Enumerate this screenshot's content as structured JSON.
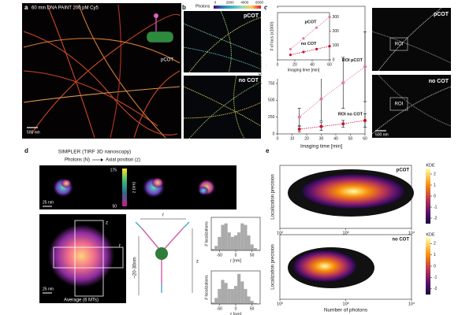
{
  "panels": {
    "a": {
      "letter": "a",
      "title": "60 min DNA PAINT 200 pM Cy5",
      "label": "pCOT",
      "scale": "500 nm"
    },
    "b": {
      "letter": "b",
      "colorbar_title": "Photons",
      "colorbar_ticks": [
        0,
        2000,
        4000,
        6000
      ],
      "top_label": "pCOT",
      "bottom_label": "no COT"
    },
    "c": {
      "letter": "c",
      "image_top_label": "pCOT",
      "image_bottom_label": "no COT",
      "roi": "ROI",
      "scale": "500 nm"
    },
    "d": {
      "letter": "d",
      "title": "SIMPLER (TIRF 3D nanoscopy)",
      "left": "Photons (N)",
      "right": "Axial position (z)",
      "colorbar_label": "z (nm)",
      "colorbar_ticks": [
        175,
        50
      ],
      "scale": "25 nm",
      "average": "Average (6 MTs)",
      "z": "z",
      "r": "r",
      "distance": "~20-30nm",
      "ylabel": "# localizations"
    },
    "e": {
      "letter": "e"
    }
  },
  "chart_data": [
    {
      "type": "line",
      "xlabel": "Imaging time [min]",
      "ylabel": "# of localizations",
      "x": [
        15,
        30,
        45,
        60
      ],
      "xlim": [
        0,
        60
      ],
      "xticks": [
        0,
        10,
        20,
        30,
        40,
        50,
        60
      ],
      "ylim": [
        0,
        1900
      ],
      "yticks": [
        0,
        250,
        500,
        750,
        1000,
        1250,
        1500
      ],
      "series": [
        {
          "name": "ROI pCOT",
          "color": "#e47a9c",
          "values": [
            250,
            520,
            760,
            1000
          ],
          "errors": [
            130,
            330,
            380,
            520
          ]
        },
        {
          "name": "ROI no COT",
          "color": "#c8102e",
          "values": [
            70,
            110,
            150,
            200
          ],
          "errors": [
            40,
            60,
            50,
            100
          ]
        }
      ]
    },
    {
      "type": "line",
      "xlabel": "Imaging time [min]",
      "ylabel": "# of locs (x1000)",
      "x": [
        15,
        30,
        45,
        60
      ],
      "xlim": [
        0,
        60
      ],
      "xticks": [
        0,
        20,
        40,
        60
      ],
      "ylim": [
        0,
        330
      ],
      "yticks": [
        0,
        100,
        200,
        300
      ],
      "yaxis_side": "right",
      "series": [
        {
          "name": "pCOT",
          "color": "#e47a9c",
          "values": [
            75,
            150,
            225,
            300
          ]
        },
        {
          "name": "no COT",
          "color": "#c8102e",
          "values": [
            35,
            55,
            75,
            95
          ]
        }
      ]
    },
    {
      "type": "histogram",
      "xlabel": "r [nm]",
      "color": "#aaaaaa",
      "bins": [
        -75,
        -65,
        -55,
        -45,
        -35,
        -25,
        -15,
        -5,
        5,
        15,
        25,
        35,
        45,
        55,
        65,
        75
      ],
      "values": [
        0.05,
        0.15,
        0.45,
        0.85,
        0.9,
        0.6,
        0.45,
        0.5,
        0.6,
        0.9,
        0.85,
        0.5,
        0.2,
        0.08,
        0.02
      ],
      "xlim": [
        -75,
        75
      ],
      "xticks": [
        -50,
        0,
        50
      ],
      "ylim": [
        0,
        1.1
      ]
    },
    {
      "type": "histogram",
      "xlabel": "z [nm]",
      "color": "#aaaaaa",
      "bins": [
        -75,
        -65,
        -55,
        -45,
        -35,
        -25,
        -15,
        -5,
        5,
        15,
        25,
        35,
        45,
        55,
        65,
        75
      ],
      "values": [
        0.05,
        0.2,
        0.5,
        0.8,
        0.7,
        0.5,
        0.5,
        0.6,
        1.0,
        0.75,
        0.5,
        0.25,
        0.1,
        0.03,
        0.01
      ],
      "xlim": [
        -75,
        75
      ],
      "xticks": [
        -50,
        0,
        50
      ],
      "ylim": [
        0,
        1.1
      ]
    },
    {
      "type": "density",
      "label": "pCOT",
      "ylabel": "Localization precision",
      "xscale": "log",
      "xlim": [
        100,
        10000
      ],
      "xticks": [
        {
          "value": 100,
          "label": "10²"
        },
        {
          "value": 1000,
          "label": "10³"
        },
        {
          "value": 10000,
          "label": "10⁴"
        }
      ],
      "colorbar_title": "KDE",
      "colorbar_ticks": [
        2,
        1,
        0,
        -1,
        -2
      ]
    },
    {
      "type": "density",
      "label": "no COT",
      "ylabel": "Localization precision",
      "xlabel": "Number of photons",
      "xscale": "log",
      "xlim": [
        100,
        10000
      ],
      "xticks": [
        {
          "value": 100,
          "label": "10²"
        },
        {
          "value": 1000,
          "label": "10³"
        },
        {
          "value": 10000,
          "label": "10⁴"
        }
      ],
      "colorbar_title": "KDE",
      "colorbar_ticks": [
        2,
        1,
        0,
        -1,
        -2
      ]
    }
  ]
}
